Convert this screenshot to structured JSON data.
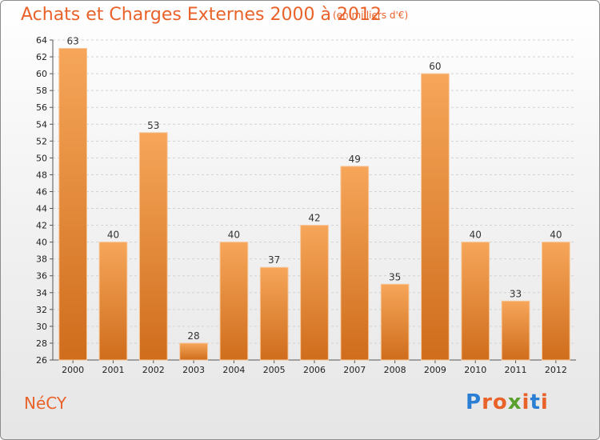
{
  "title": "Achats et Charges Externes 2000 à 2012",
  "subtitle": "(en milliers d'€)",
  "commune": "NéCY",
  "logo": {
    "letters": [
      "P",
      "r",
      "o",
      "x",
      "i",
      "t",
      "i"
    ],
    "colors": [
      "#2a7fd4",
      "#e8622a",
      "#e8622a",
      "#5aa02c",
      "#e8622a",
      "#2a7fd4",
      "#e8622a"
    ]
  },
  "colors": {
    "accent": "#e8622a",
    "bar_top": "#f6a65a",
    "bar_bottom": "#cf6d1c"
  },
  "chart_data": {
    "type": "bar",
    "categories": [
      "2000",
      "2001",
      "2002",
      "2003",
      "2004",
      "2005",
      "2006",
      "2007",
      "2008",
      "2009",
      "2010",
      "2011",
      "2012"
    ],
    "values": [
      63,
      40,
      53,
      28,
      40,
      37,
      42,
      49,
      35,
      60,
      40,
      33,
      40
    ],
    "ylim": [
      26,
      64
    ],
    "yticks": [
      26,
      28,
      30,
      32,
      34,
      36,
      38,
      40,
      42,
      44,
      46,
      48,
      50,
      52,
      54,
      56,
      58,
      60,
      62,
      64
    ],
    "grid": true,
    "data_labels": true
  }
}
